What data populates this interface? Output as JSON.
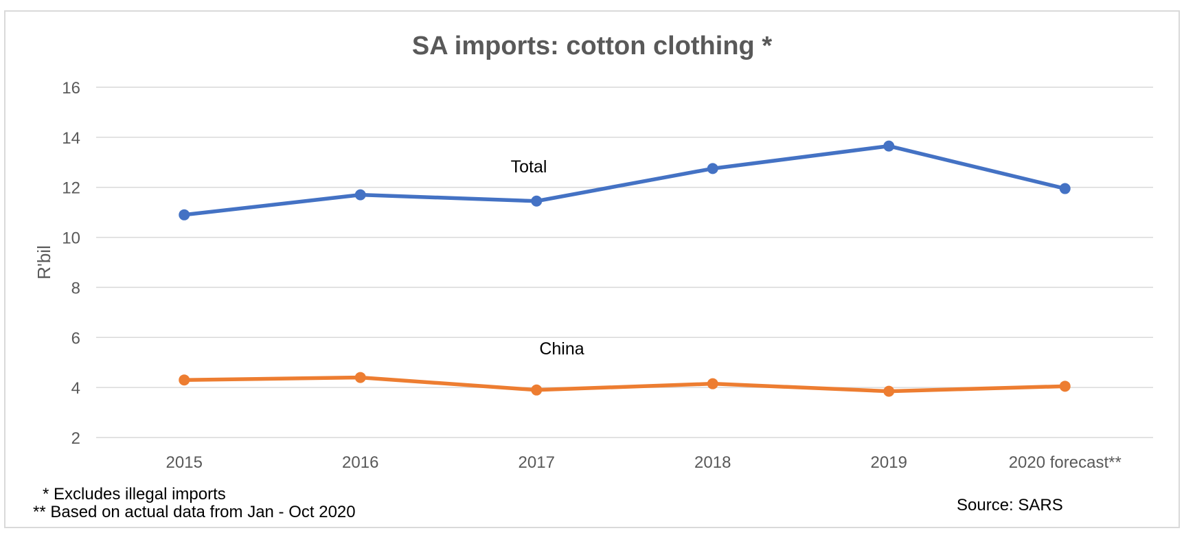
{
  "chart_data": {
    "type": "line",
    "title": "SA imports: cotton clothing *",
    "xlabel": "",
    "ylabel": "R'bil",
    "categories": [
      "2015",
      "2016",
      "2017",
      "2018",
      "2019",
      "2020 forecast**"
    ],
    "ylim": [
      2,
      16
    ],
    "yticks": [
      2,
      4,
      6,
      8,
      10,
      12,
      14,
      16
    ],
    "grid": true,
    "legend": "none",
    "series": [
      {
        "name": "Total",
        "color": "#4472c4",
        "values": [
          10.9,
          11.7,
          11.45,
          12.75,
          13.65,
          11.95
        ]
      },
      {
        "name": "China",
        "color": "#ed7d31",
        "values": [
          4.3,
          4.4,
          3.9,
          4.15,
          3.85,
          4.05
        ]
      }
    ],
    "annotations": {
      "footnote1": "* Excludes illegal imports",
      "footnote2": "** Based on actual data from Jan - Oct 2020",
      "source": "Source: SARS"
    }
  }
}
